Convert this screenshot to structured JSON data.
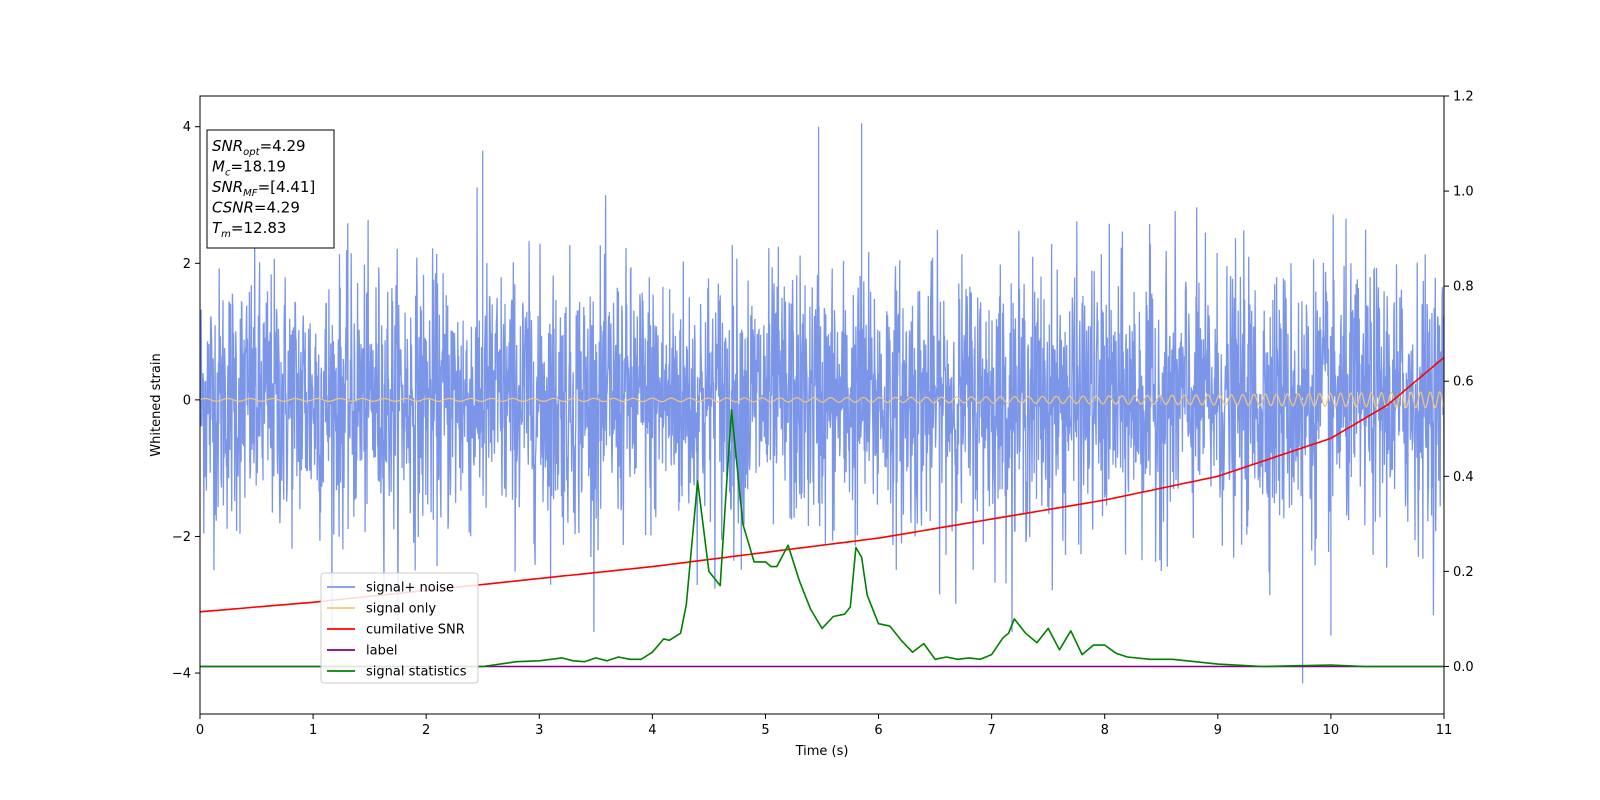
{
  "chart_data": {
    "type": "line",
    "xlabel": "Time (s)",
    "ylabel": "Whitened strain",
    "xlim": [
      0,
      11
    ],
    "ylim": [
      -4.6,
      4.45
    ],
    "y2lim": [
      -0.1,
      1.2
    ],
    "x_ticks": [
      "0",
      "1",
      "2",
      "3",
      "4",
      "5",
      "6",
      "7",
      "8",
      "9",
      "10",
      "11"
    ],
    "y_ticks": [
      "−4",
      "−2",
      "0",
      "2",
      "4"
    ],
    "y_tick_values": [
      -4,
      -2,
      0,
      2,
      4
    ],
    "y2_ticks": [
      "0.0",
      "0.2",
      "0.4",
      "0.6",
      "0.8",
      "1.0",
      "1.2"
    ],
    "y2_tick_values": [
      0.0,
      0.2,
      0.4,
      0.6,
      0.8,
      1.0,
      1.2
    ],
    "grid": false,
    "legend_position": "lower-left",
    "annotation_box_position": "top-left",
    "annotations": [
      {
        "name": "SNR",
        "sub": "opt",
        "value": "=4.29"
      },
      {
        "name": "M",
        "sub": "c",
        "value": "=18.19"
      },
      {
        "name": "SNR",
        "sub": "MF",
        "value": "=[4.41]"
      },
      {
        "name": "CSNR",
        "sub": "",
        "value": "=4.29"
      },
      {
        "name": "T",
        "sub": "m",
        "value": "=12.83"
      }
    ],
    "series": [
      {
        "name": "signal+ noise",
        "axis": "left",
        "color": "#7b96e8",
        "description": "dense random noise, roughly ±2 with spikes to ±4",
        "amplitude_sd": 0.95,
        "peaks": [
          [
            5.47,
            4.0
          ],
          [
            5.85,
            4.05
          ],
          [
            2.5,
            3.65
          ],
          [
            9.75,
            -4.15
          ],
          [
            10.0,
            -3.45
          ]
        ]
      },
      {
        "name": "signal only",
        "axis": "left",
        "color": "#f5c67a",
        "x_start": 0,
        "x_end": 11,
        "amp_start": 0.02,
        "amp_end": 0.12,
        "freq_start": 5,
        "freq_end": 12
      },
      {
        "name": "cumilative SNR",
        "axis": "right",
        "color": "#ff0000",
        "x": [
          0,
          1,
          2,
          3,
          4,
          5,
          6,
          7,
          8,
          9,
          10,
          10.5,
          11
        ],
        "values": [
          0.115,
          0.135,
          0.16,
          0.185,
          0.21,
          0.24,
          0.27,
          0.31,
          0.35,
          0.4,
          0.48,
          0.55,
          0.65
        ]
      },
      {
        "name": "label",
        "axis": "right",
        "color": "#800080",
        "x": [
          0,
          11
        ],
        "values": [
          0.0,
          0.0
        ]
      },
      {
        "name": "signal statistics",
        "axis": "right",
        "color": "#008000",
        "x": [
          0,
          2.5,
          2.8,
          3.0,
          3.2,
          3.3,
          3.4,
          3.5,
          3.6,
          3.7,
          3.8,
          3.9,
          4.0,
          4.1,
          4.15,
          4.25,
          4.3,
          4.4,
          4.5,
          4.6,
          4.65,
          4.7,
          4.8,
          4.9,
          5.0,
          5.05,
          5.1,
          5.2,
          5.3,
          5.4,
          5.5,
          5.6,
          5.7,
          5.75,
          5.8,
          5.85,
          5.9,
          6.0,
          6.1,
          6.2,
          6.3,
          6.4,
          6.5,
          6.6,
          6.7,
          6.8,
          6.9,
          7.0,
          7.1,
          7.15,
          7.2,
          7.3,
          7.4,
          7.5,
          7.6,
          7.7,
          7.8,
          7.9,
          8.0,
          8.1,
          8.2,
          8.4,
          8.6,
          8.8,
          9.0,
          9.4,
          10.0,
          10.3,
          11.0
        ],
        "values": [
          0.0,
          0.0,
          0.01,
          0.012,
          0.018,
          0.012,
          0.01,
          0.018,
          0.012,
          0.02,
          0.015,
          0.015,
          0.03,
          0.058,
          0.055,
          0.07,
          0.13,
          0.39,
          0.2,
          0.17,
          0.36,
          0.54,
          0.3,
          0.22,
          0.22,
          0.21,
          0.21,
          0.255,
          0.18,
          0.12,
          0.08,
          0.105,
          0.11,
          0.125,
          0.25,
          0.23,
          0.15,
          0.09,
          0.085,
          0.055,
          0.03,
          0.048,
          0.015,
          0.02,
          0.015,
          0.018,
          0.015,
          0.025,
          0.06,
          0.07,
          0.1,
          0.07,
          0.05,
          0.08,
          0.035,
          0.075,
          0.025,
          0.045,
          0.045,
          0.028,
          0.02,
          0.015,
          0.015,
          0.01,
          0.005,
          0.0,
          0.003,
          0.0,
          0.0
        ]
      }
    ]
  }
}
